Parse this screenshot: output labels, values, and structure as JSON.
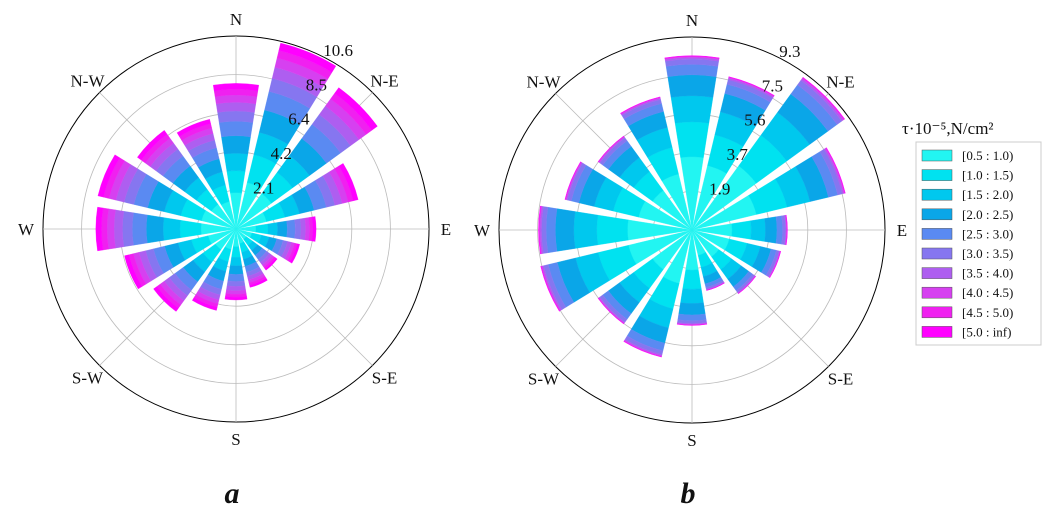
{
  "legend": {
    "title": "τ·10⁻⁵,N/cm²",
    "bins": [
      {
        "label": "[0.5 : 1.0)",
        "color": "#22f5f2"
      },
      {
        "label": "[1.0 : 1.5)",
        "color": "#00e2f0"
      },
      {
        "label": "[1.5 : 2.0)",
        "color": "#00c8ee"
      },
      {
        "label": "[2.0 : 2.5)",
        "color": "#0aa6e8"
      },
      {
        "label": "[2.5 : 3.0)",
        "color": "#5a8af2"
      },
      {
        "label": "[3.0 : 3.5)",
        "color": "#8676f0"
      },
      {
        "label": "[3.5 : 4.0)",
        "color": "#ae5ef0"
      },
      {
        "label": "[4.0 : 4.5)",
        "color": "#d640f0"
      },
      {
        "label": "[4.5 : 5.0)",
        "color": "#f020f0"
      },
      {
        "label": "[5.0 : inf)",
        "color": "#ff00ff"
      }
    ]
  },
  "chart_data": [
    {
      "type": "bar",
      "subtype": "polar-stacked (wind rose)",
      "panel_label": "a",
      "directions": [
        "N",
        "NNE",
        "NE",
        "ENE",
        "E",
        "ESE",
        "SE",
        "SSE",
        "S",
        "SSW",
        "SW",
        "WSW",
        "W",
        "WNW",
        "NW",
        "NNW"
      ],
      "direction_labels": [
        "N",
        "N-E",
        "E",
        "S-E",
        "S",
        "S-W",
        "W",
        "N-W"
      ],
      "radial_ticks": [
        "2.1",
        "4.2",
        "6.4",
        "8.5",
        "10.6"
      ],
      "rmax": 10.6,
      "totals": [
        8.0,
        10.5,
        9.6,
        6.9,
        4.4,
        3.6,
        2.8,
        3.3,
        3.9,
        4.6,
        5.6,
        6.3,
        7.7,
        7.8,
        6.7,
        6.2
      ],
      "bin_fractions": [
        0.25,
        0.15,
        0.12,
        0.12,
        0.1,
        0.07,
        0.06,
        0.05,
        0.04,
        0.04
      ],
      "grid": true
    },
    {
      "type": "bar",
      "subtype": "polar-stacked (wind rose)",
      "panel_label": "b",
      "directions": [
        "N",
        "NNE",
        "NE",
        "ENE",
        "E",
        "ESE",
        "SE",
        "SSE",
        "S",
        "SSW",
        "SW",
        "WSW",
        "W",
        "WNW",
        "NW",
        "NNW"
      ],
      "direction_labels": [
        "N",
        "N-E",
        "E",
        "S-E",
        "S",
        "S-W",
        "W",
        "N-W"
      ],
      "radial_ticks": [
        "1.9",
        "3.7",
        "5.6",
        "7.5",
        "9.3"
      ],
      "rmax": 9.3,
      "totals": [
        8.4,
        7.6,
        9.1,
        7.6,
        4.6,
        4.4,
        3.8,
        3.0,
        4.6,
        6.3,
        5.6,
        7.5,
        7.4,
        6.3,
        5.6,
        6.6
      ],
      "bin_fractions": [
        0.42,
        0.2,
        0.15,
        0.12,
        0.06,
        0.03,
        0.01,
        0.005,
        0.003,
        0.002
      ],
      "grid": true
    }
  ]
}
